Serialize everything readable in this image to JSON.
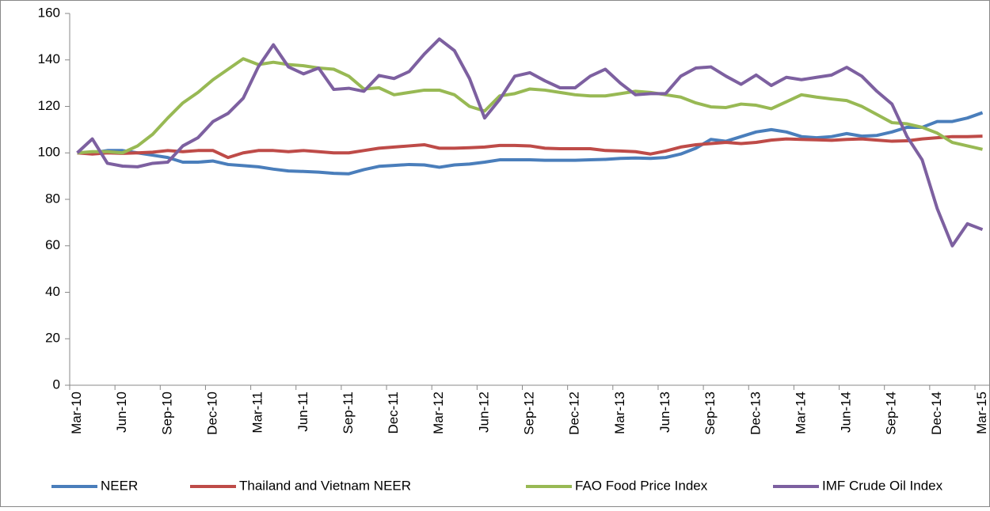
{
  "chart_data": {
    "type": "line",
    "categories": [
      "Mar-10",
      null,
      null,
      "Jun-10",
      null,
      null,
      "Sep-10",
      null,
      null,
      "Dec-10",
      null,
      null,
      "Mar-11",
      null,
      null,
      "Jun-11",
      null,
      null,
      "Sep-11",
      null,
      null,
      "Dec-11",
      null,
      null,
      "Mar-12",
      null,
      null,
      "Jun-12",
      null,
      null,
      "Sep-12",
      null,
      null,
      "Dec-12",
      null,
      null,
      "Mar-13",
      null,
      null,
      "Jun-13",
      null,
      null,
      "Sep-13",
      null,
      null,
      "Dec-13",
      null,
      null,
      "Mar-14",
      null,
      null,
      "Jun-14",
      null,
      null,
      "Sep-14",
      null,
      null,
      "Dec-14",
      null,
      null,
      "Mar-15"
    ],
    "series": [
      {
        "name": "NEER",
        "color": "#4a7ebb",
        "values": [
          100,
          100,
          101,
          101,
          100,
          99,
          98,
          96,
          96,
          96.5,
          95,
          94.5,
          94,
          93,
          92.2,
          92,
          91.7,
          91.2,
          91,
          92.8,
          94.2,
          94.6,
          95,
          94.8,
          93.8,
          94.8,
          95.2,
          96,
          97,
          97,
          97,
          96.8,
          96.8,
          96.8,
          97,
          97.2,
          97.6,
          97.8,
          97.6,
          98,
          99.5,
          102,
          105.8,
          105,
          107,
          109,
          110,
          109,
          107,
          106.5,
          107,
          108.3,
          107.2,
          107.5,
          109,
          111,
          111,
          113.5,
          113.5,
          115,
          117.3
        ]
      },
      {
        "name": "Thailand and Vietnam NEER",
        "color": "#be4b48",
        "values": [
          100,
          99.5,
          100,
          99.8,
          100,
          100.3,
          101,
          100.5,
          101,
          101,
          98,
          100,
          101,
          101,
          100.5,
          101,
          100.5,
          100,
          100,
          101,
          102,
          102.5,
          103,
          103.5,
          102,
          102,
          102.2,
          102.5,
          103.2,
          103.2,
          103,
          102,
          101.8,
          101.8,
          101.8,
          101,
          100.8,
          100.5,
          99.5,
          100.8,
          102.5,
          103.5,
          104,
          104.5,
          104,
          104.5,
          105.5,
          106,
          105.8,
          105.6,
          105.4,
          105.8,
          106,
          105.5,
          105,
          105.2,
          106,
          106.5,
          107,
          107,
          107.2
        ]
      },
      {
        "name": "FAO Food Price Index",
        "color": "#98b954",
        "values": [
          100,
          100.5,
          100.5,
          100,
          103,
          108,
          115,
          121.5,
          126,
          131.5,
          136,
          140.5,
          138,
          139,
          138,
          137.5,
          136.5,
          136,
          133,
          127.5,
          128,
          125,
          126,
          127,
          127,
          125,
          120,
          118,
          124.5,
          125.5,
          127.5,
          127,
          126,
          125,
          124.5,
          124.5,
          125.5,
          126.5,
          126,
          125,
          124,
          121.5,
          119.8,
          119.5,
          121,
          120.5,
          119,
          122,
          125,
          124,
          123.2,
          122.5,
          120,
          116.5,
          113,
          112.5,
          111,
          108.5,
          104.5,
          103,
          101.5
        ]
      },
      {
        "name": "IMF Crude Oil Index",
        "color": "#7d60a0",
        "values": [
          100,
          106,
          95.5,
          94.3,
          94,
          95.5,
          96,
          103,
          106.5,
          113.5,
          117,
          123.5,
          137,
          146.5,
          137,
          134,
          136.5,
          127.3,
          127.8,
          126.5,
          133.3,
          132,
          135,
          142.5,
          149,
          144,
          132,
          115,
          123,
          133,
          134.5,
          131,
          128,
          128,
          133,
          136,
          130,
          125,
          125.5,
          125.5,
          133,
          136.5,
          137,
          133,
          129.5,
          133.5,
          129,
          132.5,
          131.5,
          132.5,
          133.5,
          136.8,
          133,
          126.5,
          121,
          107,
          97,
          76,
          60,
          69.5,
          67
        ]
      }
    ],
    "ylim": [
      0,
      160
    ],
    "yticks": [
      0,
      20,
      40,
      60,
      80,
      100,
      120,
      140,
      160
    ],
    "grid": false,
    "legend": "bottom"
  }
}
